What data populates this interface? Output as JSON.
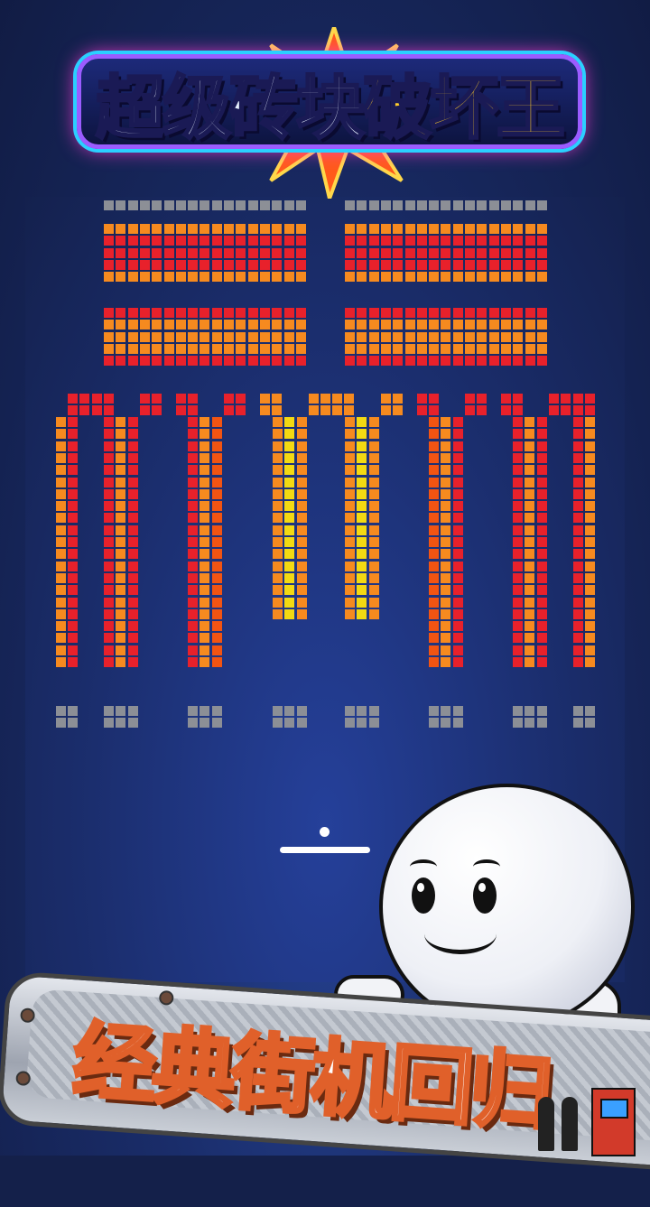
{
  "game_title": {
    "part1": "超级砖块",
    "part2": "破坏王"
  },
  "banner": {
    "text": "经典街机回归"
  },
  "colors": {
    "red": "#e8212b",
    "orange": "#f68a1f",
    "orange_red": "#f25412",
    "yellow": "#f3da12",
    "gray": "#8c8f96",
    "background": "#1b2e6e"
  },
  "icons": [
    "title-burst-icon",
    "mascot-ball-icon",
    "arcade-cabinet-icon",
    "player-silhouette-icon"
  ]
}
